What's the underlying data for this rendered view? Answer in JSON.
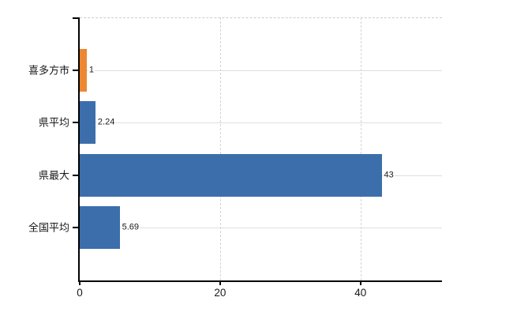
{
  "chart_data": {
    "type": "bar",
    "orientation": "horizontal",
    "title": "",
    "xlabel": "",
    "ylabel": "",
    "categories": [
      "喜多方市",
      "県平均",
      "県最大",
      "全国平均"
    ],
    "values": [
      1,
      2.24,
      43,
      5.69
    ],
    "value_labels": [
      "1",
      "2.24",
      "43",
      "5.69"
    ],
    "bar_colors": [
      "#ED8733",
      "#3C6EAC",
      "#3C6EAC",
      "#3C6EAC"
    ],
    "x_ticks": [
      0,
      20,
      40
    ],
    "x_tick_labels": [
      "0",
      "20",
      "40"
    ],
    "xlim": [
      0,
      51.6
    ],
    "grid": {
      "horizontal": "solid per-category",
      "vertical": "dashed at x ticks",
      "top_border": "dashed"
    },
    "legend": "none"
  },
  "colors": {
    "background": "#ffffff",
    "bar_blue": "#3C6EAC",
    "bar_orange": "#ED8733",
    "axis": "#000000",
    "grid_horizontal": "#d9e2d8",
    "grid_vertical": "#d4d4d4",
    "text": "#1a1a1a"
  }
}
